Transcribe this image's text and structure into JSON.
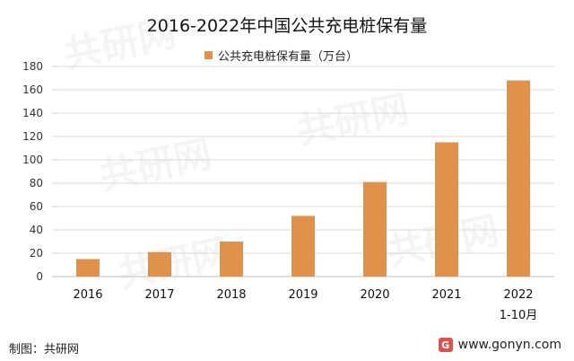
{
  "chart_data": {
    "type": "bar",
    "title": "2016-2022年中国公共充电桩保有量",
    "categories": [
      "2016",
      "2017",
      "2018",
      "2019",
      "2020",
      "2021",
      "2022"
    ],
    "category_sublabels": [
      "",
      "",
      "",
      "",
      "",
      "",
      "1-10月"
    ],
    "series": [
      {
        "name": "公共充电桩保有量（万台）",
        "values": [
          15,
          21,
          30,
          52,
          81,
          115,
          168
        ]
      }
    ],
    "ylim": [
      0,
      180
    ],
    "yticks": [
      0,
      20,
      40,
      60,
      80,
      100,
      120,
      140,
      160,
      180
    ],
    "xlabel": "",
    "ylabel": "",
    "grid": true,
    "legend_position": "top-center"
  },
  "colors": {
    "bar": "#E0914A",
    "grid": "#D9D9D9",
    "axis": "#BFBFBF"
  },
  "footer": {
    "source": "制图：共研网",
    "website": "www.gonyn.com",
    "logo_letter": "G"
  },
  "watermark_text": "共研网"
}
